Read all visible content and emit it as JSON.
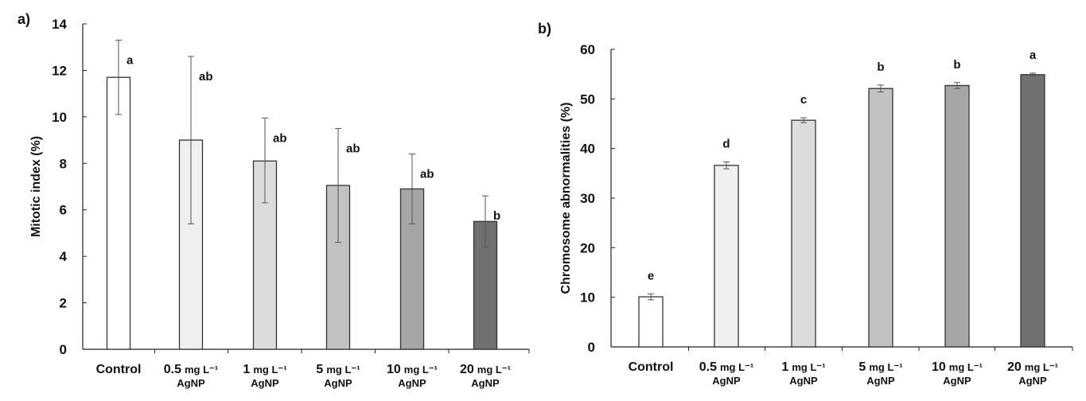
{
  "chart_data": [
    {
      "type": "bar",
      "panel_label": "a)",
      "ylabel": "Mitotic index (%)",
      "ylim": [
        0,
        14
      ],
      "yticks": [
        0,
        2,
        4,
        6,
        8,
        10,
        12,
        14
      ],
      "categories": [
        {
          "main": "Control",
          "unit": "",
          "sub": ""
        },
        {
          "main": "0.5",
          "unit": "mg L⁻¹",
          "sub": "AgNP"
        },
        {
          "main": "1",
          "unit": "mg L⁻¹",
          "sub": "AgNP"
        },
        {
          "main": "5",
          "unit": "mg L⁻¹",
          "sub": "AgNP"
        },
        {
          "main": "10",
          "unit": "mg L⁻¹",
          "sub": "AgNP"
        },
        {
          "main": "20",
          "unit": "mg L⁻¹",
          "sub": "AgNP"
        }
      ],
      "values": [
        11.7,
        9.0,
        8.1,
        7.05,
        6.9,
        5.5
      ],
      "error_low": [
        10.1,
        5.4,
        6.3,
        4.6,
        5.4,
        4.4
      ],
      "error_high": [
        13.3,
        12.6,
        9.95,
        9.5,
        8.4,
        6.6
      ],
      "significance": [
        "a",
        "ab",
        "ab",
        "ab",
        "ab",
        "b"
      ],
      "colors": [
        "#ffffff",
        "#f0f0f0",
        "#dcdcdc",
        "#c2c2c2",
        "#a6a6a6",
        "#707070"
      ],
      "grid": false
    },
    {
      "type": "bar",
      "panel_label": "b)",
      "ylabel": "Chromosome  abnormalities (%)",
      "ylim": [
        0,
        60
      ],
      "yticks": [
        0,
        10,
        20,
        30,
        40,
        50,
        60
      ],
      "categories": [
        {
          "main": "Control",
          "unit": "",
          "sub": ""
        },
        {
          "main": "0.5",
          "unit": "mg L⁻¹",
          "sub": "AgNP"
        },
        {
          "main": "1",
          "unit": "mg L⁻¹",
          "sub": "AgNP"
        },
        {
          "main": "5",
          "unit": "mg L⁻¹",
          "sub": "AgNP"
        },
        {
          "main": "10",
          "unit": "mg L⁻¹",
          "sub": "AgNP"
        },
        {
          "main": "20",
          "unit": "mg L⁻¹",
          "sub": "AgNP"
        }
      ],
      "values": [
        10.1,
        36.6,
        45.7,
        52.1,
        52.7,
        54.9
      ],
      "error_low": [
        9.5,
        35.9,
        45.2,
        51.4,
        52.1,
        54.6
      ],
      "error_high": [
        10.7,
        37.3,
        46.2,
        52.8,
        53.3,
        55.2
      ],
      "significance": [
        "e",
        "d",
        "c",
        "b",
        "b",
        "a"
      ],
      "colors": [
        "#ffffff",
        "#f0f0f0",
        "#dcdcdc",
        "#c2c2c2",
        "#a6a6a6",
        "#707070"
      ],
      "grid": false
    }
  ]
}
